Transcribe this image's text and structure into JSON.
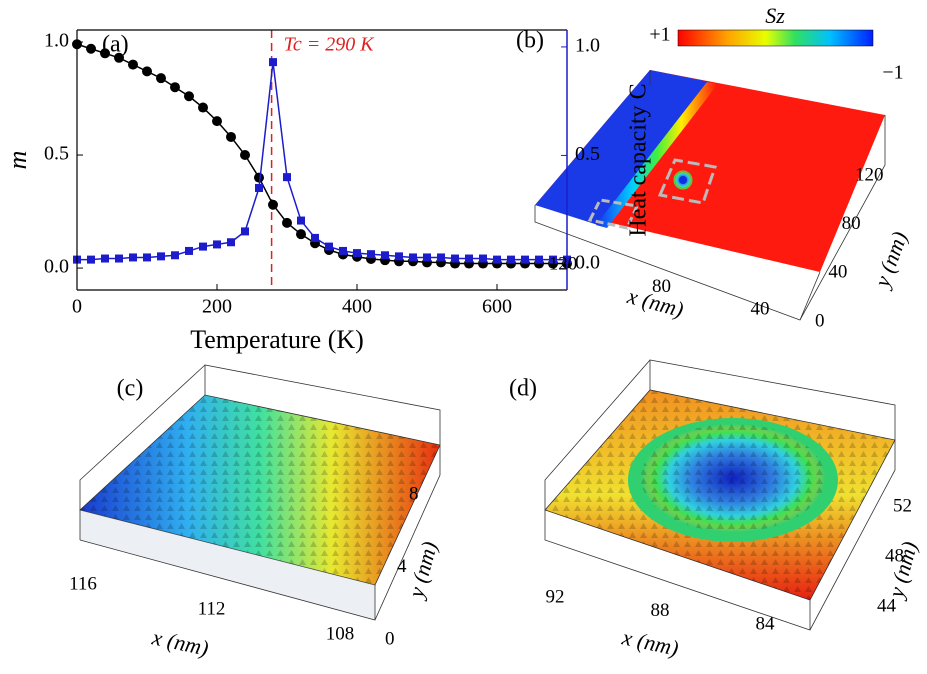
{
  "chart_data": {
    "type": "line",
    "panel_label": "(a)",
    "xlabel": "Temperature (K)",
    "ylabel": "m",
    "y2label": "Heat capacity C",
    "annotation": "Tc = 290 K",
    "vline": 278,
    "vline_color": "#e02020",
    "x": [
      0,
      20,
      40,
      60,
      80,
      100,
      120,
      140,
      160,
      180,
      200,
      220,
      240,
      260,
      280,
      300,
      320,
      340,
      360,
      380,
      400,
      420,
      440,
      460,
      480,
      500,
      520,
      540,
      560,
      580,
      600,
      620,
      640,
      660,
      680,
      700
    ],
    "series": [
      {
        "name": "m",
        "color": "#000000",
        "marker": "circle",
        "values": [
          0.99,
          0.97,
          0.95,
          0.93,
          0.9,
          0.87,
          0.84,
          0.8,
          0.76,
          0.71,
          0.65,
          0.58,
          0.5,
          0.4,
          0.28,
          0.2,
          0.15,
          0.11,
          0.08,
          0.06,
          0.05,
          0.04,
          0.035,
          0.03,
          0.03,
          0.025,
          0.025,
          0.02,
          0.02,
          0.02,
          0.02,
          0.02,
          0.02,
          0.02,
          0.02,
          0.02
        ]
      },
      {
        "name": "C",
        "color": "#1c1ccc",
        "marker": "square",
        "axis": "y2",
        "values": [
          0.02,
          0.02,
          0.025,
          0.025,
          0.03,
          0.03,
          0.035,
          0.04,
          0.06,
          0.08,
          0.09,
          0.1,
          0.15,
          0.35,
          0.93,
          0.4,
          0.2,
          0.12,
          0.08,
          0.06,
          0.05,
          0.045,
          0.04,
          0.035,
          0.03,
          0.03,
          0.03,
          0.025,
          0.025,
          0.025,
          0.02,
          0.02,
          0.02,
          0.02,
          0.02,
          0.02
        ]
      }
    ],
    "xlim": [
      0,
      700
    ],
    "xticks": [
      0,
      200,
      400,
      600
    ],
    "ylim": [
      -0.097,
      1.053
    ],
    "yticks": [
      {
        "value": 0,
        "label": "0.0"
      },
      {
        "value": 0.5,
        "label": "0.5"
      },
      {
        "value": 1,
        "label": "1.0"
      }
    ],
    "y2lim": [
      -0.12,
      1.078
    ],
    "y2ticks": [
      {
        "value": 0,
        "label": "0.0"
      },
      {
        "value": 0.5,
        "label": "0.5"
      },
      {
        "value": 1,
        "label": "1.0"
      }
    ]
  },
  "panels": [
    {
      "label": "(b)",
      "xlabel": "x (nm)",
      "ylabel": "y (nm)",
      "xticks": [
        120,
        80,
        40
      ],
      "yticks": [
        0,
        40,
        80,
        120
      ],
      "colorbar": {
        "max": "+1",
        "min": "−1",
        "title": "Sz"
      }
    },
    {
      "label": "(c)",
      "xlabel": "x (nm)",
      "ylabel": "y (nm)",
      "xticks": [
        116,
        112,
        108
      ],
      "yticks": [
        0,
        4,
        8
      ]
    },
    {
      "label": "(d)",
      "xlabel": "x (nm)",
      "ylabel": "y (nm)",
      "xticks": [
        92,
        88,
        84
      ],
      "yticks": [
        44,
        48,
        52
      ]
    }
  ]
}
